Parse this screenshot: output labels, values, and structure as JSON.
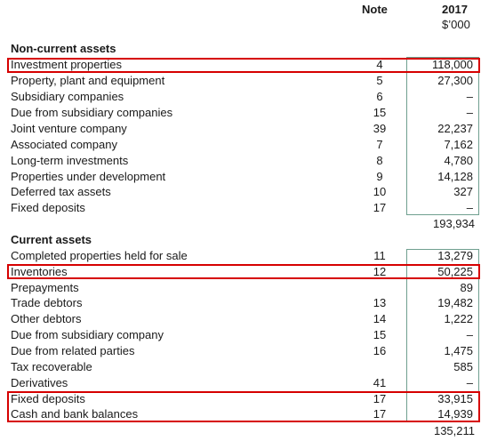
{
  "header": {
    "note": "Note",
    "year": "2017",
    "unit": "$’000"
  },
  "noncurrent": {
    "title": "Non-current assets",
    "rows": [
      {
        "label": "Investment properties",
        "note": "4",
        "value": "118,000"
      },
      {
        "label": "Property, plant and equipment",
        "note": "5",
        "value": "27,300"
      },
      {
        "label": "Subsidiary companies",
        "note": "6",
        "value": "–"
      },
      {
        "label": "Due from subsidiary companies",
        "note": "15",
        "value": "–"
      },
      {
        "label": "Joint venture company",
        "note": "39",
        "value": "22,237"
      },
      {
        "label": "Associated company",
        "note": "7",
        "value": "7,162"
      },
      {
        "label": "Long-term investments",
        "note": "8",
        "value": "4,780"
      },
      {
        "label": "Properties under development",
        "note": "9",
        "value": "14,128"
      },
      {
        "label": "Deferred tax assets",
        "note": "10",
        "value": "327"
      },
      {
        "label": "Fixed deposits",
        "note": "17",
        "value": "–"
      }
    ],
    "total": "193,934"
  },
  "current": {
    "title": "Current assets",
    "rows": [
      {
        "label": "Completed properties held for sale",
        "note": "11",
        "value": "13,279"
      },
      {
        "label": "Inventories",
        "note": "12",
        "value": "50,225"
      },
      {
        "label": "Prepayments",
        "note": "",
        "value": "89"
      },
      {
        "label": "Trade debtors",
        "note": "13",
        "value": "19,482"
      },
      {
        "label": "Other debtors",
        "note": "14",
        "value": "1,222"
      },
      {
        "label": "Due from subsidiary company",
        "note": "15",
        "value": "–"
      },
      {
        "label": "Due from related parties",
        "note": "16",
        "value": "1,475"
      },
      {
        "label": "Tax recoverable",
        "note": "",
        "value": "585"
      },
      {
        "label": "Derivatives",
        "note": "41",
        "value": "–"
      },
      {
        "label": "Fixed deposits",
        "note": "17",
        "value": "33,915"
      },
      {
        "label": "Cash and bank balances",
        "note": "17",
        "value": "14,939"
      }
    ],
    "total": "135,211"
  },
  "colors": {
    "highlight": "#d60000",
    "frame": "#6f9f8f"
  }
}
